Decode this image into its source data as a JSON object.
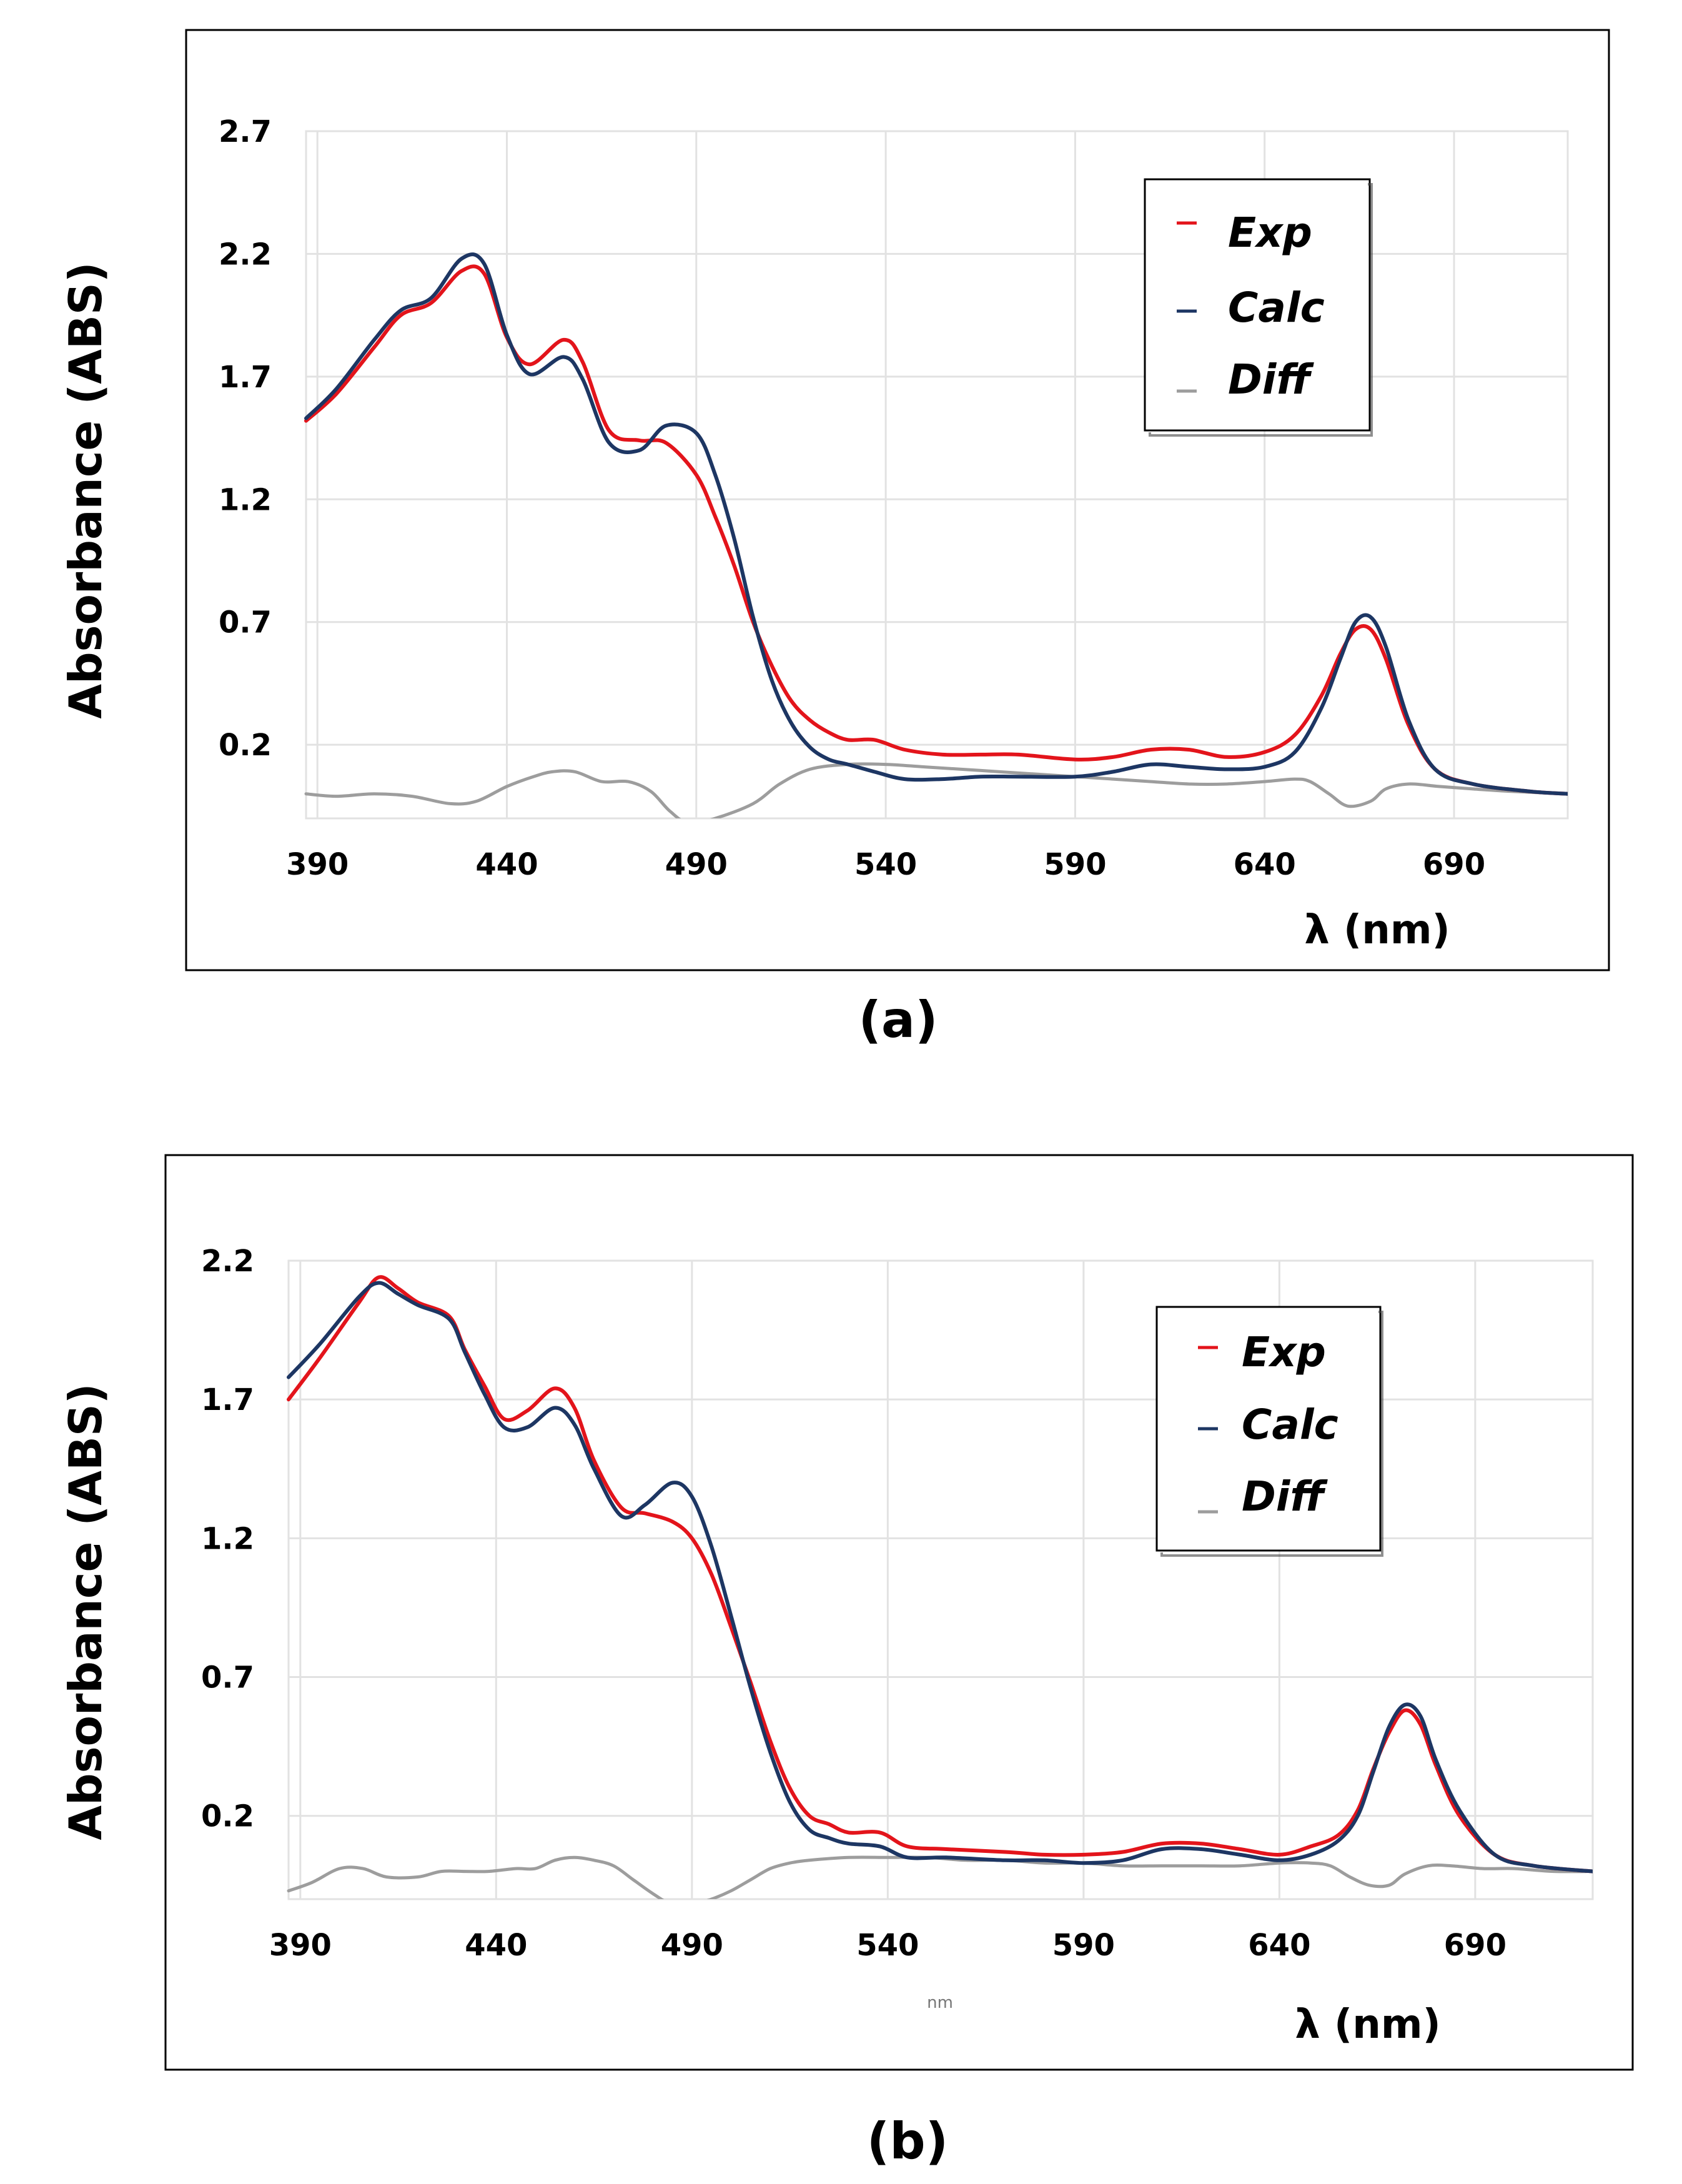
{
  "chart_data": [
    {
      "type": "line",
      "panel": "a",
      "caption": "(a)",
      "ylabel": "Absorbance  (ABS)",
      "xlabel": "λ (nm)",
      "x_ticks": [
        "390",
        "440",
        "490",
        "540",
        "590",
        "640",
        "690"
      ],
      "y_ticks": [
        "0.2",
        "0.7",
        "1.2",
        "1.7",
        "2.2",
        "2.7"
      ],
      "xlim": [
        387,
        720
      ],
      "ylim": [
        -0.1,
        2.7
      ],
      "grid": true,
      "legend": {
        "position": "top-right",
        "entries": [
          "Exp",
          "Calc",
          "Diff"
        ]
      },
      "series": [
        {
          "name": "Exp",
          "color": "#e3141b",
          "x": [
            387,
            395,
            405,
            412,
            420,
            428,
            434,
            440,
            446,
            455,
            460,
            467,
            475,
            482,
            490,
            495,
            500,
            505,
            510,
            515,
            520,
            525,
            530,
            537,
            545,
            555,
            565,
            575,
            590,
            600,
            610,
            620,
            630,
            640,
            648,
            655,
            660,
            664,
            668,
            672,
            678,
            685,
            695,
            710,
            720
          ],
          "y": [
            1.52,
            1.63,
            1.82,
            1.95,
            2.0,
            2.13,
            2.12,
            1.86,
            1.75,
            1.85,
            1.76,
            1.48,
            1.44,
            1.43,
            1.3,
            1.13,
            0.93,
            0.7,
            0.52,
            0.38,
            0.3,
            0.25,
            0.22,
            0.22,
            0.18,
            0.16,
            0.16,
            0.16,
            0.14,
            0.15,
            0.18,
            0.18,
            0.15,
            0.17,
            0.24,
            0.4,
            0.57,
            0.67,
            0.67,
            0.55,
            0.28,
            0.1,
            0.04,
            0.01,
            0.0
          ]
        },
        {
          "name": "Calc",
          "color": "#1d3663",
          "x": [
            387,
            395,
            405,
            412,
            420,
            428,
            434,
            440,
            446,
            455,
            460,
            467,
            475,
            482,
            490,
            495,
            500,
            505,
            510,
            515,
            520,
            525,
            530,
            537,
            545,
            555,
            565,
            575,
            590,
            600,
            610,
            620,
            630,
            640,
            648,
            655,
            660,
            664,
            668,
            672,
            678,
            685,
            695,
            710,
            720
          ],
          "y": [
            1.53,
            1.65,
            1.85,
            1.97,
            2.02,
            2.18,
            2.16,
            1.87,
            1.71,
            1.78,
            1.69,
            1.43,
            1.4,
            1.5,
            1.47,
            1.3,
            1.04,
            0.72,
            0.46,
            0.29,
            0.19,
            0.14,
            0.12,
            0.09,
            0.06,
            0.06,
            0.07,
            0.07,
            0.07,
            0.09,
            0.12,
            0.11,
            0.1,
            0.11,
            0.17,
            0.35,
            0.55,
            0.7,
            0.72,
            0.6,
            0.3,
            0.1,
            0.04,
            0.01,
            0.0
          ]
        },
        {
          "name": "Diff",
          "color": "#9d9d9d",
          "x": [
            387,
            395,
            405,
            415,
            425,
            432,
            440,
            447,
            452,
            458,
            465,
            472,
            478,
            483,
            488,
            495,
            505,
            512,
            520,
            530,
            540,
            550,
            560,
            570,
            580,
            590,
            600,
            610,
            620,
            630,
            640,
            648,
            652,
            657,
            662,
            668,
            672,
            678,
            686,
            695,
            705,
            720
          ],
          "y": [
            0.0,
            -0.01,
            0.0,
            -0.01,
            -0.04,
            -0.03,
            0.03,
            0.07,
            0.09,
            0.09,
            0.05,
            0.05,
            0.01,
            -0.07,
            -0.12,
            -0.1,
            -0.04,
            0.04,
            0.1,
            0.12,
            0.12,
            0.11,
            0.1,
            0.09,
            0.08,
            0.07,
            0.06,
            0.05,
            0.04,
            0.04,
            0.05,
            0.06,
            0.05,
            0.0,
            -0.05,
            -0.03,
            0.02,
            0.04,
            0.03,
            0.02,
            0.01,
            0.0
          ]
        }
      ]
    },
    {
      "type": "line",
      "panel": "b",
      "caption": "(b)",
      "ylabel": "Absorbance (ABS)",
      "xlabel": "λ (nm)",
      "x_note": "nm",
      "x_ticks": [
        "390",
        "440",
        "490",
        "540",
        "590",
        "640",
        "690"
      ],
      "y_ticks": [
        "0.2",
        "0.7",
        "1.2",
        "1.7",
        "2.2"
      ],
      "xlim": [
        387,
        720
      ],
      "ylim": [
        -0.1,
        2.2
      ],
      "grid": true,
      "legend": {
        "position": "top-right",
        "entries": [
          "Exp",
          "Calc",
          "Diff"
        ]
      },
      "series": [
        {
          "name": "Exp",
          "color": "#e3141b",
          "x": [
            387,
            395,
            405,
            410,
            415,
            420,
            428,
            432,
            437,
            442,
            448,
            455,
            460,
            465,
            472,
            478,
            485,
            490,
            495,
            500,
            505,
            510,
            515,
            520,
            525,
            530,
            538,
            545,
            555,
            570,
            580,
            590,
            600,
            610,
            620,
            630,
            640,
            648,
            655,
            660,
            664,
            668,
            672,
            676,
            680,
            686,
            695,
            705,
            720
          ],
          "y": [
            1.7,
            1.85,
            2.05,
            2.14,
            2.1,
            2.05,
            2.0,
            1.88,
            1.75,
            1.63,
            1.66,
            1.74,
            1.67,
            1.48,
            1.31,
            1.29,
            1.26,
            1.2,
            1.07,
            0.88,
            0.68,
            0.47,
            0.3,
            0.2,
            0.17,
            0.14,
            0.14,
            0.09,
            0.08,
            0.07,
            0.06,
            0.06,
            0.07,
            0.1,
            0.1,
            0.08,
            0.06,
            0.09,
            0.13,
            0.22,
            0.37,
            0.5,
            0.58,
            0.53,
            0.38,
            0.2,
            0.06,
            0.02,
            0.0
          ]
        },
        {
          "name": "Calc",
          "color": "#1d3663",
          "x": [
            387,
            395,
            405,
            410,
            415,
            420,
            428,
            432,
            437,
            442,
            448,
            455,
            460,
            465,
            472,
            478,
            485,
            490,
            495,
            500,
            505,
            510,
            515,
            520,
            525,
            530,
            538,
            545,
            555,
            570,
            580,
            590,
            600,
            610,
            620,
            630,
            640,
            648,
            655,
            660,
            664,
            668,
            672,
            676,
            680,
            686,
            695,
            705,
            720
          ],
          "y": [
            1.78,
            1.9,
            2.07,
            2.12,
            2.08,
            2.04,
            1.99,
            1.87,
            1.72,
            1.6,
            1.6,
            1.67,
            1.61,
            1.45,
            1.28,
            1.32,
            1.4,
            1.35,
            1.17,
            0.92,
            0.66,
            0.43,
            0.25,
            0.15,
            0.12,
            0.1,
            0.09,
            0.05,
            0.05,
            0.04,
            0.04,
            0.03,
            0.04,
            0.08,
            0.08,
            0.06,
            0.04,
            0.06,
            0.11,
            0.2,
            0.36,
            0.52,
            0.6,
            0.56,
            0.4,
            0.22,
            0.06,
            0.02,
            0.0
          ]
        },
        {
          "name": "Diff",
          "color": "#9d9d9d",
          "x": [
            387,
            393,
            400,
            406,
            412,
            420,
            426,
            432,
            438,
            445,
            450,
            455,
            460,
            465,
            470,
            475,
            480,
            485,
            490,
            495,
            500,
            505,
            510,
            515,
            520,
            530,
            540,
            550,
            560,
            570,
            580,
            590,
            600,
            610,
            620,
            630,
            640,
            648,
            653,
            658,
            663,
            668,
            672,
            678,
            684,
            692,
            700,
            710,
            720
          ],
          "y": [
            -0.07,
            -0.04,
            0.01,
            0.01,
            -0.02,
            -0.02,
            0.0,
            0.0,
            0.0,
            0.01,
            0.01,
            0.04,
            0.05,
            0.04,
            0.02,
            -0.03,
            -0.08,
            -0.12,
            -0.12,
            -0.1,
            -0.07,
            -0.03,
            0.01,
            0.03,
            0.04,
            0.05,
            0.05,
            0.05,
            0.04,
            0.04,
            0.03,
            0.03,
            0.02,
            0.02,
            0.02,
            0.02,
            0.03,
            0.03,
            0.02,
            -0.02,
            -0.05,
            -0.05,
            -0.01,
            0.02,
            0.02,
            0.01,
            0.01,
            0.0,
            0.0
          ]
        }
      ]
    }
  ]
}
